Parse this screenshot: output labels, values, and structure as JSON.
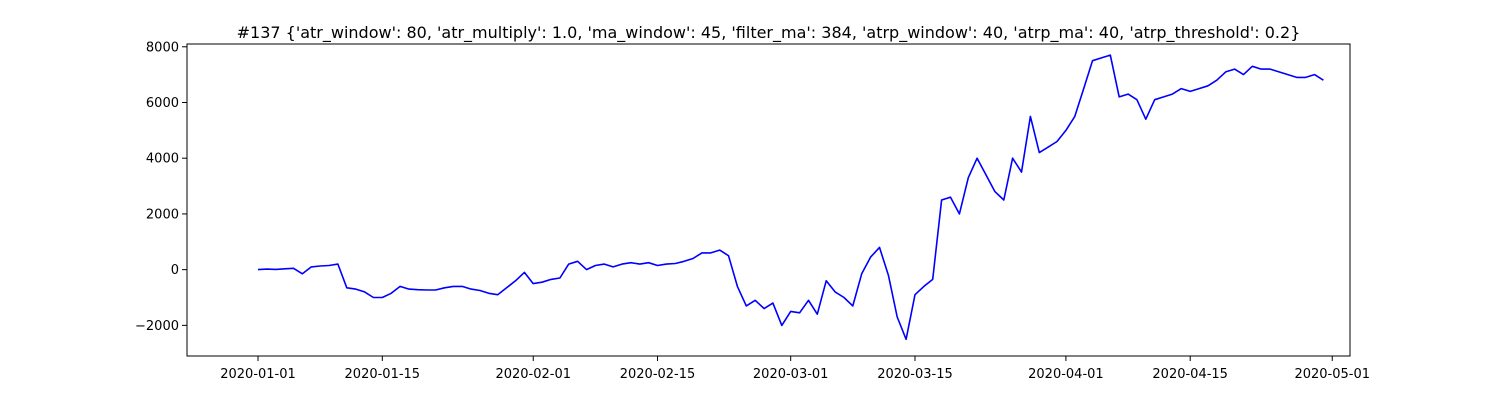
{
  "chart_data": {
    "type": "line",
    "title": "#137 {'atr_window': 80, 'atr_multiply': 1.0, 'ma_window': 45, 'filter_ma': 384, 'atrp_window': 40, 'atrp_ma': 40, 'atrp_threshold': 0.2}",
    "xlabel": "",
    "ylabel": "",
    "x_axis_kind": "date",
    "xlim": [
      "2019-12-24",
      "2020-05-03"
    ],
    "ylim": [
      -3100,
      8100
    ],
    "x_ticks": [
      "2020-01-01",
      "2020-01-15",
      "2020-02-01",
      "2020-02-15",
      "2020-03-01",
      "2020-03-15",
      "2020-04-01",
      "2020-04-15",
      "2020-05-01"
    ],
    "y_ticks": [
      -2000,
      0,
      2000,
      4000,
      6000,
      8000
    ],
    "y_tick_labels": [
      "−2000",
      "0",
      "2000",
      "4000",
      "6000",
      "8000"
    ],
    "grid": false,
    "legend": "none",
    "series": [
      {
        "color": "#0000ff",
        "x": [
          "2020-01-01",
          "2020-01-02",
          "2020-01-03",
          "2020-01-04",
          "2020-01-05",
          "2020-01-06",
          "2020-01-07",
          "2020-01-08",
          "2020-01-09",
          "2020-01-10",
          "2020-01-11",
          "2020-01-12",
          "2020-01-13",
          "2020-01-14",
          "2020-01-15",
          "2020-01-16",
          "2020-01-17",
          "2020-01-18",
          "2020-01-19",
          "2020-01-20",
          "2020-01-21",
          "2020-01-22",
          "2020-01-23",
          "2020-01-24",
          "2020-01-25",
          "2020-01-26",
          "2020-01-27",
          "2020-01-28",
          "2020-01-29",
          "2020-01-30",
          "2020-01-31",
          "2020-02-01",
          "2020-02-02",
          "2020-02-03",
          "2020-02-04",
          "2020-02-05",
          "2020-02-06",
          "2020-02-07",
          "2020-02-08",
          "2020-02-09",
          "2020-02-10",
          "2020-02-11",
          "2020-02-12",
          "2020-02-13",
          "2020-02-14",
          "2020-02-15",
          "2020-02-16",
          "2020-02-17",
          "2020-02-18",
          "2020-02-19",
          "2020-02-20",
          "2020-02-21",
          "2020-02-22",
          "2020-02-23",
          "2020-02-24",
          "2020-02-25",
          "2020-02-26",
          "2020-02-27",
          "2020-02-28",
          "2020-02-29",
          "2020-03-01",
          "2020-03-02",
          "2020-03-03",
          "2020-03-04",
          "2020-03-05",
          "2020-03-06",
          "2020-03-07",
          "2020-03-08",
          "2020-03-09",
          "2020-03-10",
          "2020-03-11",
          "2020-03-12",
          "2020-03-13",
          "2020-03-14",
          "2020-03-15",
          "2020-03-16",
          "2020-03-17",
          "2020-03-18",
          "2020-03-19",
          "2020-03-20",
          "2020-03-21",
          "2020-03-22",
          "2020-03-23",
          "2020-03-24",
          "2020-03-25",
          "2020-03-26",
          "2020-03-27",
          "2020-03-28",
          "2020-03-29",
          "2020-03-30",
          "2020-03-31",
          "2020-04-01",
          "2020-04-02",
          "2020-04-03",
          "2020-04-04",
          "2020-04-05",
          "2020-04-06",
          "2020-04-07",
          "2020-04-08",
          "2020-04-09",
          "2020-04-10",
          "2020-04-11",
          "2020-04-12",
          "2020-04-13",
          "2020-04-14",
          "2020-04-15",
          "2020-04-16",
          "2020-04-17",
          "2020-04-18",
          "2020-04-19",
          "2020-04-20",
          "2020-04-21",
          "2020-04-22",
          "2020-04-23",
          "2020-04-24",
          "2020-04-25",
          "2020-04-26",
          "2020-04-27",
          "2020-04-28",
          "2020-04-29",
          "2020-04-30"
        ],
        "values": [
          0,
          20,
          10,
          30,
          50,
          -150,
          100,
          130,
          150,
          200,
          -650,
          -700,
          -800,
          -1000,
          -1000,
          -850,
          -600,
          -700,
          -720,
          -730,
          -730,
          -650,
          -600,
          -600,
          -700,
          -750,
          -850,
          -900,
          -650,
          -400,
          -100,
          -500,
          -450,
          -350,
          -300,
          200,
          300,
          0,
          150,
          200,
          100,
          200,
          250,
          200,
          250,
          150,
          200,
          220,
          300,
          400,
          600,
          600,
          700,
          500,
          -600,
          -1300,
          -1100,
          -1400,
          -1200,
          -2000,
          -1500,
          -1550,
          -1100,
          -1600,
          -400,
          -800,
          -1000,
          -1300,
          -150,
          450,
          800,
          -200,
          -1700,
          -2500,
          -900,
          -600,
          -350,
          2500,
          2600,
          2000,
          3300,
          4000,
          3400,
          2800,
          2500,
          4000,
          3500,
          5500,
          4200,
          4400,
          4600,
          5000,
          5500,
          6500,
          7500,
          7600,
          7700,
          6200,
          6300,
          6100,
          5400,
          6100,
          6200,
          6300,
          6500,
          6400,
          6500,
          6600,
          6800,
          7100,
          7200,
          7000,
          7300,
          7200,
          7200,
          7100,
          7000,
          6900,
          6900,
          7000,
          6800
        ],
        "values_note_removed": true
      }
    ]
  }
}
